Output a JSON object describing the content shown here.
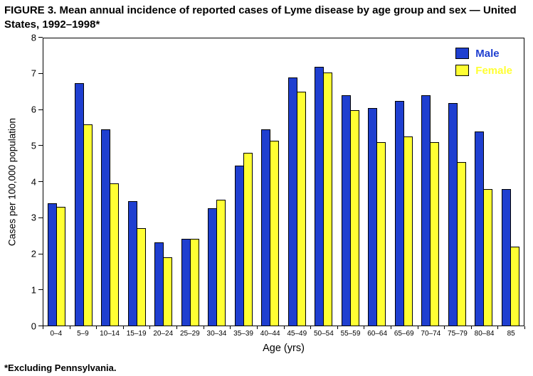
{
  "figure": {
    "title": "FIGURE 3. Mean annual incidence of reported cases of Lyme disease by age group and sex — United States, 1992–1998*",
    "footnote": "*Excluding Pennsylvania."
  },
  "chart_data": {
    "type": "bar",
    "title": "FIGURE 3. Mean annual incidence of reported cases of Lyme disease by age group and sex — United States, 1992–1998*",
    "xlabel": "Age (yrs)",
    "ylabel": "Cases per 100,000 population",
    "ylim": [
      0,
      8
    ],
    "yticks": [
      0,
      1,
      2,
      3,
      4,
      5,
      6,
      7,
      8
    ],
    "grid": false,
    "legend_position": "top-right-inside",
    "categories": [
      "0–4",
      "5–9",
      "10–14",
      "15–19",
      "20–24",
      "25–29",
      "30–34",
      "35–39",
      "40–44",
      "45–49",
      "50–54",
      "55–59",
      "60–64",
      "65–69",
      "70–74",
      "75–79",
      "80–84",
      "85"
    ],
    "series": [
      {
        "name": "Male",
        "color": "#1f3fd0",
        "values": [
          3.4,
          6.75,
          5.45,
          3.45,
          2.3,
          2.4,
          3.25,
          4.45,
          5.45,
          6.9,
          7.2,
          6.4,
          6.05,
          6.25,
          6.4,
          6.2,
          5.4,
          3.8
        ]
      },
      {
        "name": "Female",
        "color": "#ffff33",
        "values": [
          3.3,
          5.6,
          3.95,
          2.7,
          1.9,
          2.4,
          3.5,
          4.8,
          5.15,
          6.5,
          7.05,
          6.0,
          5.1,
          5.25,
          5.1,
          4.55,
          3.8,
          2.2
        ]
      }
    ],
    "footnote": "*Excluding Pennsylvania."
  }
}
